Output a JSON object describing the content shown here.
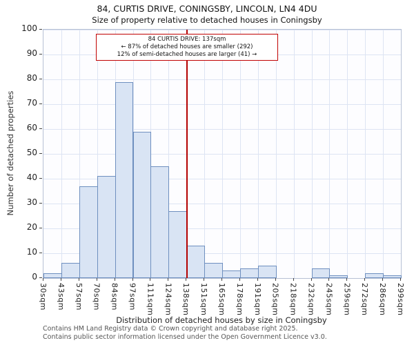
{
  "title": "84, CURTIS DRIVE, CONINGSBY, LINCOLN, LN4 4DU",
  "subtitle": "Size of property relative to detached houses in Coningsby",
  "annotation": {
    "line1": "84 CURTIS DRIVE: 137sqm",
    "line2": "← 87% of detached houses are smaller (292)",
    "line3": "12% of semi-detached houses are larger (41) →"
  },
  "chart_data": {
    "type": "bar",
    "title": "84, CURTIS DRIVE, CONINGSBY, LINCOLN, LN4 4DU — Size of property relative to detached houses in Coningsby",
    "xlabel": "Distribution of detached houses by size in Coningsby",
    "ylabel": "Number of detached properties",
    "bin_edges": [
      30,
      43,
      57,
      70,
      84,
      97,
      111,
      124,
      138,
      151,
      165,
      178,
      191,
      205,
      218,
      232,
      245,
      259,
      272,
      286,
      299
    ],
    "x_ticks": [
      "30sqm",
      "43sqm",
      "57sqm",
      "70sqm",
      "84sqm",
      "97sqm",
      "111sqm",
      "124sqm",
      "138sqm",
      "151sqm",
      "165sqm",
      "178sqm",
      "191sqm",
      "205sqm",
      "218sqm",
      "232sqm",
      "245sqm",
      "259sqm",
      "272sqm",
      "286sqm",
      "299sqm"
    ],
    "values": [
      2,
      6,
      37,
      41,
      79,
      59,
      45,
      27,
      13,
      6,
      3,
      4,
      5,
      0,
      0,
      4,
      1,
      0,
      2,
      1
    ],
    "y_ticks": [
      0,
      10,
      20,
      30,
      40,
      50,
      60,
      70,
      80,
      90,
      100
    ],
    "ylim": [
      0,
      100
    ],
    "grid": true,
    "legend": "none",
    "marker_value": 138,
    "bar_fill": "#d9e4f4",
    "bar_border": "#6e8fbf",
    "marker_color": "#b40000",
    "annotation_border": "#c00000"
  },
  "footer": {
    "line1": "Contains HM Land Registry data © Crown copyright and database right 2025.",
    "line2": "Contains public sector information licensed under the Open Government Licence v3.0."
  }
}
